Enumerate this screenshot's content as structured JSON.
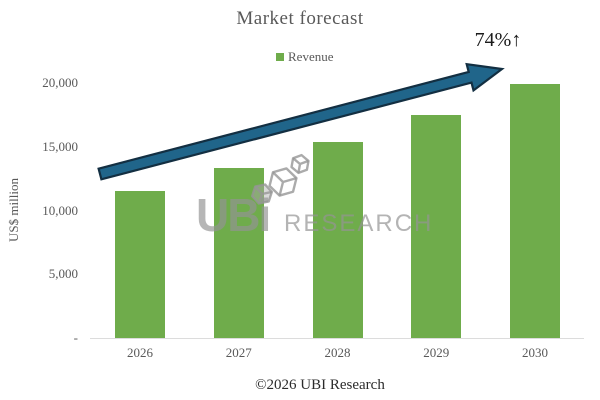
{
  "chart_data": {
    "type": "bar",
    "title": "Market forecast",
    "ylabel": "US$ million",
    "xlabel": "",
    "categories": [
      "2026",
      "2027",
      "2028",
      "2029",
      "2030"
    ],
    "series": [
      {
        "name": "Revenue",
        "values": [
          11500,
          13300,
          15400,
          17500,
          19900
        ]
      }
    ],
    "ylim": [
      0,
      20000
    ],
    "ytick_interval": 5000,
    "ytick_labels_top_to_bottom": [
      "20,000",
      "15,000",
      "10,000",
      "5,000",
      "-"
    ],
    "grid": false,
    "legend_position": "top-center",
    "bar_color": "#6FAC4B",
    "annotation": "74%↑"
  },
  "arrow": {
    "fill": "#20658A",
    "outline": "#132F42"
  },
  "watermark": {
    "logo_text": "UBi",
    "text": "RESEARCH"
  },
  "footer": {
    "text": "©2026 UBI Research"
  }
}
